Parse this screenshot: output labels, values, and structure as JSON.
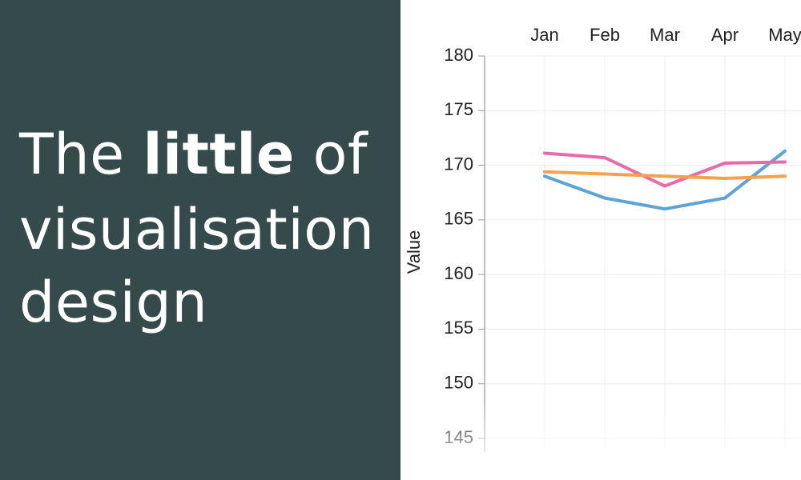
{
  "title_panel": {
    "line1": {
      "before": "The ",
      "bold": "little",
      "after": " of"
    },
    "line2": "visualisation",
    "line3": "design"
  },
  "chart_data": {
    "type": "line",
    "ylabel": "Value",
    "categories": [
      "Jan",
      "Feb",
      "Mar",
      "Apr",
      "May"
    ],
    "series": [
      {
        "color": "#5ba3d9",
        "values": [
          169.0,
          167.0,
          166.0,
          167.0,
          171.3
        ]
      },
      {
        "color": "#e96aa9",
        "values": [
          171.1,
          170.7,
          168.1,
          170.2,
          170.3
        ]
      },
      {
        "color": "#f4a24c",
        "values": [
          169.4,
          169.2,
          169.0,
          168.8,
          169.0
        ]
      }
    ],
    "ylim": [
      145,
      180
    ],
    "yticks": [
      145,
      150,
      155,
      160,
      165,
      170,
      175,
      180
    ],
    "grid": true
  }
}
